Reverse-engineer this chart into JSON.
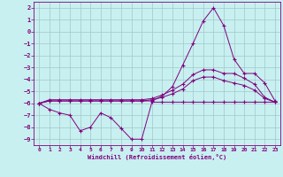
{
  "xlabel": "Windchill (Refroidissement éolien,°C)",
  "xlim": [
    -0.5,
    23.5
  ],
  "ylim": [
    -9.5,
    2.5
  ],
  "yticks": [
    2,
    1,
    0,
    -1,
    -2,
    -3,
    -4,
    -5,
    -6,
    -7,
    -8,
    -9
  ],
  "xticks": [
    0,
    1,
    2,
    3,
    4,
    5,
    6,
    7,
    8,
    9,
    10,
    11,
    12,
    13,
    14,
    15,
    16,
    17,
    18,
    19,
    20,
    21,
    22,
    23
  ],
  "bg_color": "#c8f0f0",
  "line_color": "#800080",
  "grid_color": "#a0c8c8",
  "line1_x": [
    0,
    1,
    2,
    3,
    4,
    5,
    6,
    7,
    8,
    9,
    10,
    11,
    12,
    13,
    14,
    15,
    16,
    17,
    18,
    19,
    20,
    21,
    22,
    23
  ],
  "line1_y": [
    -6.0,
    -6.5,
    -6.8,
    -7.0,
    -8.3,
    -8.0,
    -6.8,
    -7.2,
    -8.1,
    -9.0,
    -9.0,
    -5.9,
    -5.9,
    -5.9,
    -5.9,
    -5.9,
    -5.9,
    -5.9,
    -5.9,
    -5.9,
    -5.9,
    -5.9,
    -5.9,
    -5.9
  ],
  "line2_x": [
    0,
    1,
    2,
    3,
    4,
    5,
    6,
    7,
    8,
    9,
    10,
    11,
    12,
    13,
    14,
    15,
    16,
    17,
    18,
    19,
    20,
    21,
    22,
    23
  ],
  "line2_y": [
    -6.0,
    -5.8,
    -5.8,
    -5.8,
    -5.8,
    -5.8,
    -5.8,
    -5.8,
    -5.8,
    -5.8,
    -5.8,
    -5.8,
    -5.4,
    -4.6,
    -2.8,
    -1.0,
    0.9,
    2.0,
    0.5,
    -2.3,
    -3.5,
    -3.5,
    -4.3,
    -5.8
  ],
  "line3_x": [
    0,
    1,
    2,
    3,
    4,
    5,
    6,
    7,
    8,
    9,
    10,
    11,
    12,
    13,
    14,
    15,
    16,
    17,
    18,
    19,
    20,
    21,
    22,
    23
  ],
  "line3_y": [
    -6.0,
    -5.7,
    -5.7,
    -5.7,
    -5.7,
    -5.7,
    -5.7,
    -5.7,
    -5.7,
    -5.7,
    -5.7,
    -5.6,
    -5.3,
    -4.9,
    -4.4,
    -3.6,
    -3.2,
    -3.2,
    -3.5,
    -3.5,
    -3.9,
    -4.4,
    -5.5,
    -5.9
  ],
  "line4_x": [
    0,
    1,
    2,
    3,
    4,
    5,
    6,
    7,
    8,
    9,
    10,
    11,
    12,
    13,
    14,
    15,
    16,
    17,
    18,
    19,
    20,
    21,
    22,
    23
  ],
  "line4_y": [
    -6.0,
    -5.8,
    -5.8,
    -5.8,
    -5.8,
    -5.8,
    -5.8,
    -5.8,
    -5.8,
    -5.8,
    -5.8,
    -5.7,
    -5.5,
    -5.2,
    -4.8,
    -4.1,
    -3.8,
    -3.8,
    -4.1,
    -4.3,
    -4.5,
    -4.9,
    -5.6,
    -5.9
  ]
}
